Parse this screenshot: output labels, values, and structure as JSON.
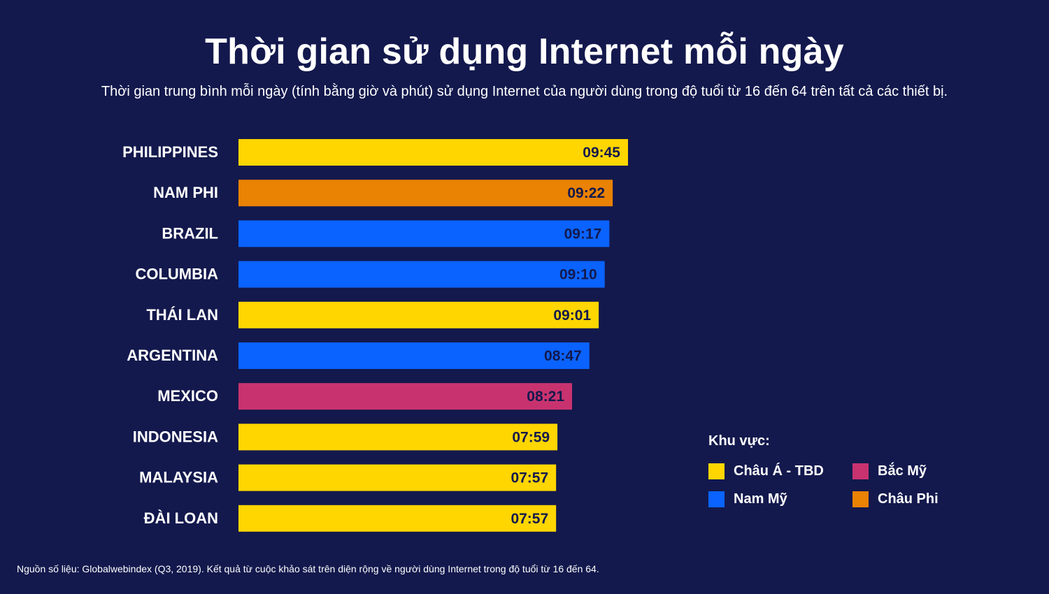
{
  "title": "Thời gian sử dụng Internet mỗi ngày",
  "subtitle": "Thời gian trung bình mỗi ngày (tính bằng giờ và phút) sử dụng Internet của người dùng trong độ tuổi từ 16 đến 64 trên tất cả các thiết bị.",
  "source": "Nguồn số liệu: Globalwebindex (Q3, 2019). Kết quả từ cuộc khảo sát trên diện rộng về người dùng Internet trong độ tuổi từ 16 đến 64.",
  "legend": {
    "title": "Khu vực:",
    "items": [
      {
        "key": "apac",
        "label": "Châu Á - TBD",
        "color": "#ffd600"
      },
      {
        "key": "na",
        "label": "Bắc Mỹ",
        "color": "#c8336f"
      },
      {
        "key": "sa",
        "label": "Nam Mỹ",
        "color": "#0a63ff"
      },
      {
        "key": "af",
        "label": "Châu Phi",
        "color": "#ea8203"
      }
    ]
  },
  "chart_data": {
    "type": "bar",
    "orientation": "horizontal",
    "categories": [
      "PHILIPPINES",
      "NAM PHI",
      "BRAZIL",
      "COLUMBIA",
      "THÁI LAN",
      "ARGENTINA",
      "MEXICO",
      "INDONESIA",
      "MALAYSIA",
      "ĐÀI LOAN"
    ],
    "labels": [
      "09:45",
      "09:22",
      "09:17",
      "09:10",
      "09:01",
      "08:47",
      "08:21",
      "07:59",
      "07:57",
      "07:57"
    ],
    "values_minutes": [
      585,
      562,
      557,
      550,
      541,
      527,
      501,
      479,
      477,
      477
    ],
    "regions": [
      "apac",
      "af",
      "sa",
      "sa",
      "apac",
      "sa",
      "na",
      "apac",
      "apac",
      "apac"
    ],
    "legend_placement": "bottom-right",
    "grid": false
  }
}
